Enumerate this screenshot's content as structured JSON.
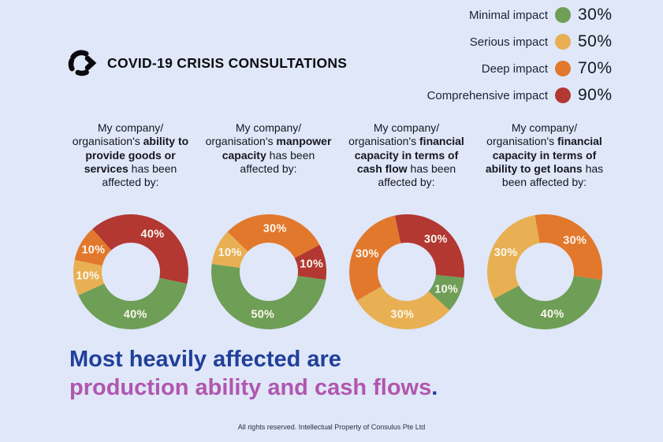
{
  "page": {
    "background": "#dfe7f8"
  },
  "palette": {
    "green": "#6f9e56",
    "amber": "#e8b052",
    "orange": "#e2782c",
    "red": "#b23831"
  },
  "brand": {
    "title": "COVID-19 CRISIS CONSULTATIONS"
  },
  "legend": {
    "items": [
      {
        "label": "Minimal impact",
        "color": "green",
        "pct": "30%"
      },
      {
        "label": "Serious impact",
        "color": "amber",
        "pct": "50%"
      },
      {
        "label": "Deep impact",
        "color": "orange",
        "pct": "70%"
      },
      {
        "label": "Comprehensive impact",
        "color": "red",
        "pct": "90%"
      }
    ]
  },
  "columns": [
    {
      "pre": "My company/ organisation's ",
      "bold": "ability to provide goods or services",
      "post": " has been affected by:"
    },
    {
      "pre": "My company/ organisation's ",
      "bold": "manpower capacity",
      "post": " has been affected by:"
    },
    {
      "pre": "My company/ organisation's ",
      "bold": "financial capacity in terms of cash flow",
      "post": " has been affected by:"
    },
    {
      "pre": "My company/ organisation's ",
      "bold": "financial capacity in terms of ability to get loans",
      "post": " has been affected by:"
    }
  ],
  "chart_data": [
    {
      "type": "pie",
      "title": "Ability to provide goods or services affected by",
      "start_angle": -42,
      "legend_position": "top-right",
      "segments": [
        {
          "label": "Comprehensive impact",
          "color": "red",
          "value": 40
        },
        {
          "label": "Minimal impact",
          "color": "green",
          "value": 40
        },
        {
          "label": "Serious impact",
          "color": "amber",
          "value": 10
        },
        {
          "label": "Deep impact",
          "color": "orange",
          "value": 10
        }
      ]
    },
    {
      "type": "pie",
      "title": "Manpower capacity affected by",
      "start_angle": -46,
      "legend_position": "top-right",
      "segments": [
        {
          "label": "Deep impact",
          "color": "orange",
          "value": 30
        },
        {
          "label": "Comprehensive impact",
          "color": "red",
          "value": 10
        },
        {
          "label": "Minimal impact",
          "color": "green",
          "value": 50
        },
        {
          "label": "Serious impact",
          "color": "amber",
          "value": 10
        }
      ]
    },
    {
      "type": "pie",
      "title": "Financial capacity in terms of cash flow affected by",
      "start_angle": -12,
      "legend_position": "top-right",
      "segments": [
        {
          "label": "Comprehensive impact",
          "color": "red",
          "value": 30
        },
        {
          "label": "Minimal impact",
          "color": "green",
          "value": 10
        },
        {
          "label": "Serious impact",
          "color": "amber",
          "value": 30
        },
        {
          "label": "Deep impact",
          "color": "orange",
          "value": 30
        }
      ]
    },
    {
      "type": "pie",
      "title": "Financial capacity in terms of ability to get loans affected by",
      "start_angle": -10,
      "legend_position": "top-right",
      "segments": [
        {
          "label": "Deep impact",
          "color": "orange",
          "value": 30
        },
        {
          "label": "Minimal impact",
          "color": "green",
          "value": 40
        },
        {
          "label": "Serious impact",
          "color": "amber",
          "value": 30
        }
      ]
    }
  ],
  "headline": {
    "line1": "Most heavily affected are",
    "line2_accent": "production ability and cash flows",
    "line2_end": ".",
    "base_color": "#21409a",
    "accent_color": "#b156ae"
  },
  "footer": "All rights reserved. Intellectual Property of Consulus Pte Ltd"
}
